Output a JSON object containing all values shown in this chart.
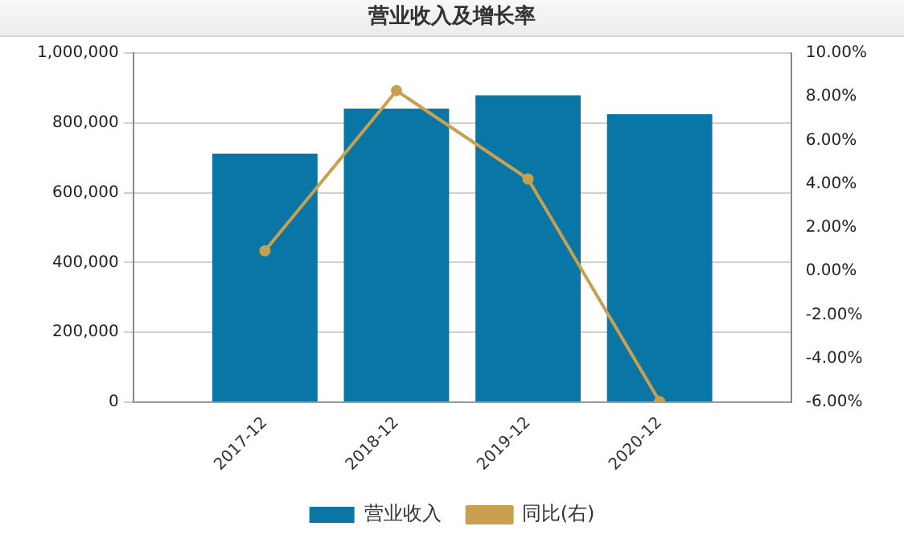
{
  "chart_data": {
    "type": "bar",
    "title": "营业收入及增长率",
    "categories": [
      "2017-12",
      "2018-12",
      "2019-12",
      "2020-12"
    ],
    "series": [
      {
        "name": "营业收入",
        "color": "#0a76a6",
        "values": [
          712000,
          841000,
          879000,
          825000
        ]
      },
      {
        "name": "同比(右)",
        "type": "line",
        "axis": "y2",
        "color": "#c9a04e",
        "values": [
          0.94,
          8.28,
          4.23,
          -5.97
        ]
      }
    ],
    "ylim": [
      0,
      1000000
    ],
    "yticks": [
      {
        "value": 0,
        "label": "0"
      },
      {
        "value": 200000,
        "label": "200,000"
      },
      {
        "value": 400000,
        "label": "400,000"
      },
      {
        "value": 600000,
        "label": "600,000"
      },
      {
        "value": 800000,
        "label": "800,000"
      },
      {
        "value": 1000000,
        "label": "1,000,000"
      }
    ],
    "y2lim": [
      -6,
      10
    ],
    "y2ticks": [
      {
        "value": -6,
        "label": "-6.00%"
      },
      {
        "value": -4,
        "label": "-4.00%"
      },
      {
        "value": -2,
        "label": "-2.00%"
      },
      {
        "value": 0,
        "label": "0.00%"
      },
      {
        "value": 2,
        "label": "2.00%"
      },
      {
        "value": 4,
        "label": "4.00%"
      },
      {
        "value": 6,
        "label": "6.00%"
      },
      {
        "value": 8,
        "label": "8.00%"
      },
      {
        "value": 10,
        "label": "10.00%"
      }
    ],
    "grid": "y",
    "legend": "bottom",
    "marker": "circle",
    "line_style": "solid"
  }
}
